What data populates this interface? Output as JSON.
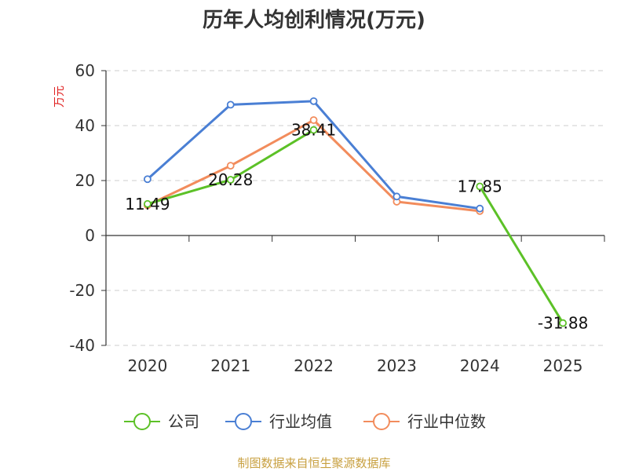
{
  "chart_data": {
    "type": "line",
    "title": "历年人均创利情况(万元)",
    "ylabel": "万元",
    "categories": [
      "2020",
      "2021",
      "2022",
      "2023",
      "2024",
      "2025"
    ],
    "ylim": [
      -40,
      60
    ],
    "yticks": [
      60,
      40,
      20,
      0,
      -20,
      -40
    ],
    "ytick_labels": [
      "60",
      "40",
      "20",
      "0",
      "-20",
      "-40"
    ],
    "grid": true,
    "legend_position": "bottom",
    "series": [
      {
        "name": "公司",
        "color": "#5cc127",
        "values": [
          11.49,
          20.28,
          38.41,
          null,
          17.85,
          -31.88
        ],
        "labels": [
          "11.49",
          "20.28",
          "38.41",
          "",
          "17.85",
          "-31.88"
        ]
      },
      {
        "name": "行业均值",
        "color": "#4a7fd4",
        "values": [
          20.5,
          47.6,
          48.9,
          14.2,
          9.8,
          null
        ]
      },
      {
        "name": "行业中位数",
        "color": "#f28c5c",
        "values": [
          11.0,
          25.4,
          42.0,
          12.3,
          8.9,
          null
        ]
      }
    ]
  },
  "source": "制图数据来自恒生聚源数据库"
}
